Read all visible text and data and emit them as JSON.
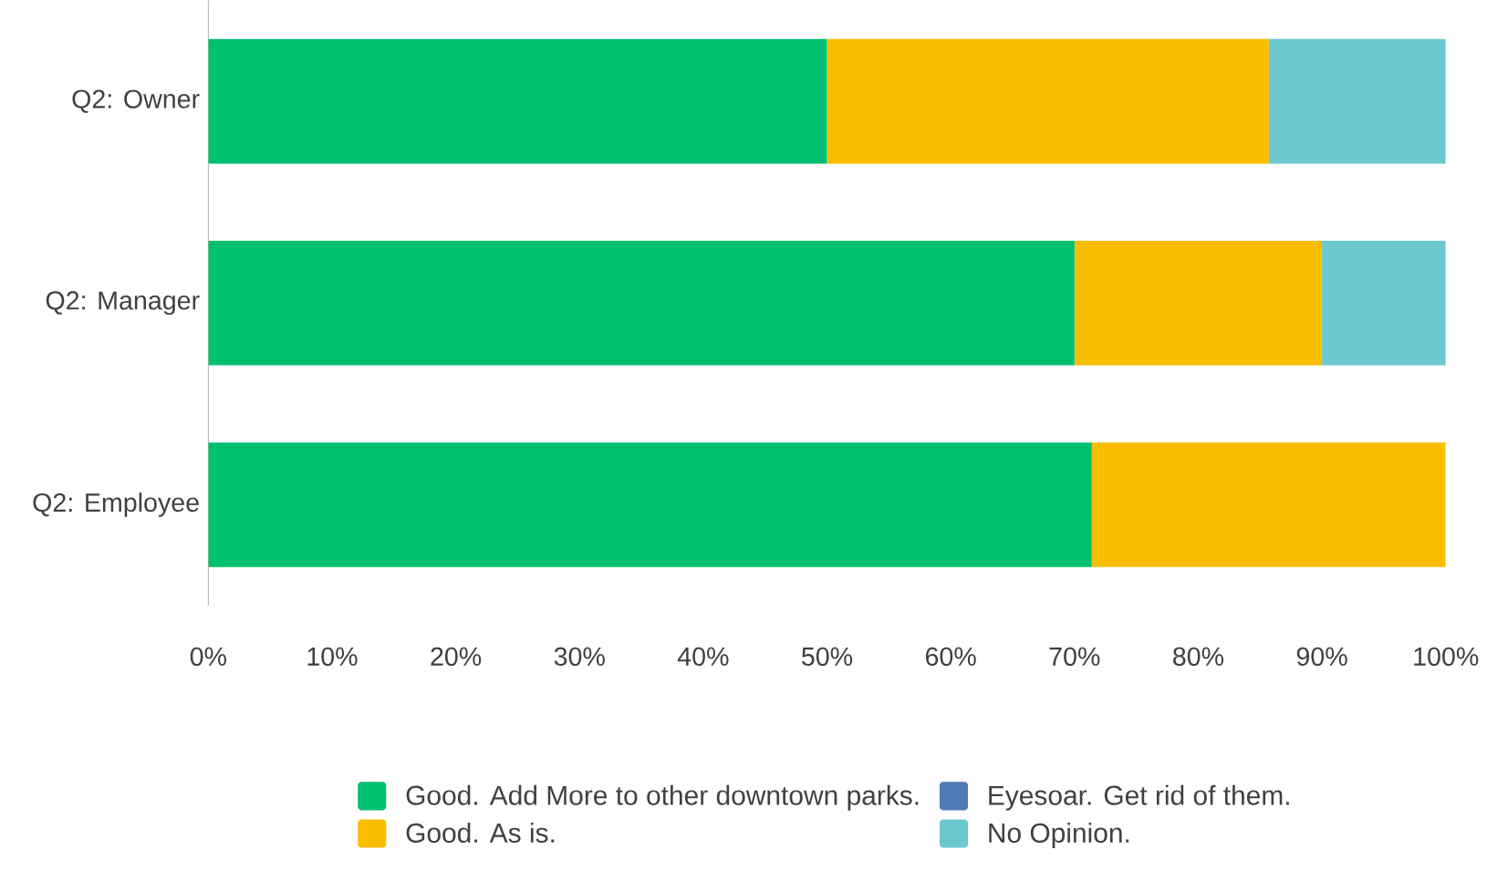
{
  "chart_data": {
    "type": "bar",
    "orientation": "horizontal",
    "stacked": true,
    "categories": [
      "Q2: Owner",
      "Q2: Manager",
      "Q2: Employee"
    ],
    "series": [
      {
        "name": "Good. Add More to other downtown parks.",
        "color": "#00bf6f",
        "values": [
          50,
          70,
          71.4
        ]
      },
      {
        "name": "Eyesoar. Get rid of them.",
        "color": "#507cb6",
        "values": [
          0,
          0,
          0
        ]
      },
      {
        "name": "Good. As is.",
        "color": "#f9be00",
        "values": [
          35.7,
          20,
          28.6
        ]
      },
      {
        "name": "No Opinion.",
        "color": "#6bc8cd",
        "values": [
          14.3,
          10,
          0
        ]
      }
    ],
    "xlim": [
      0,
      100
    ],
    "xticks": [
      {
        "value": 0,
        "label": "0%"
      },
      {
        "value": 10,
        "label": "10%"
      },
      {
        "value": 20,
        "label": "20%"
      },
      {
        "value": 30,
        "label": "30%"
      },
      {
        "value": 40,
        "label": "40%"
      },
      {
        "value": 50,
        "label": "50%"
      },
      {
        "value": 60,
        "label": "60%"
      },
      {
        "value": 70,
        "label": "70%"
      },
      {
        "value": 80,
        "label": "80%"
      },
      {
        "value": 90,
        "label": "90%"
      },
      {
        "value": 100,
        "label": "100%"
      }
    ],
    "grid": false,
    "legend": "bottom"
  }
}
